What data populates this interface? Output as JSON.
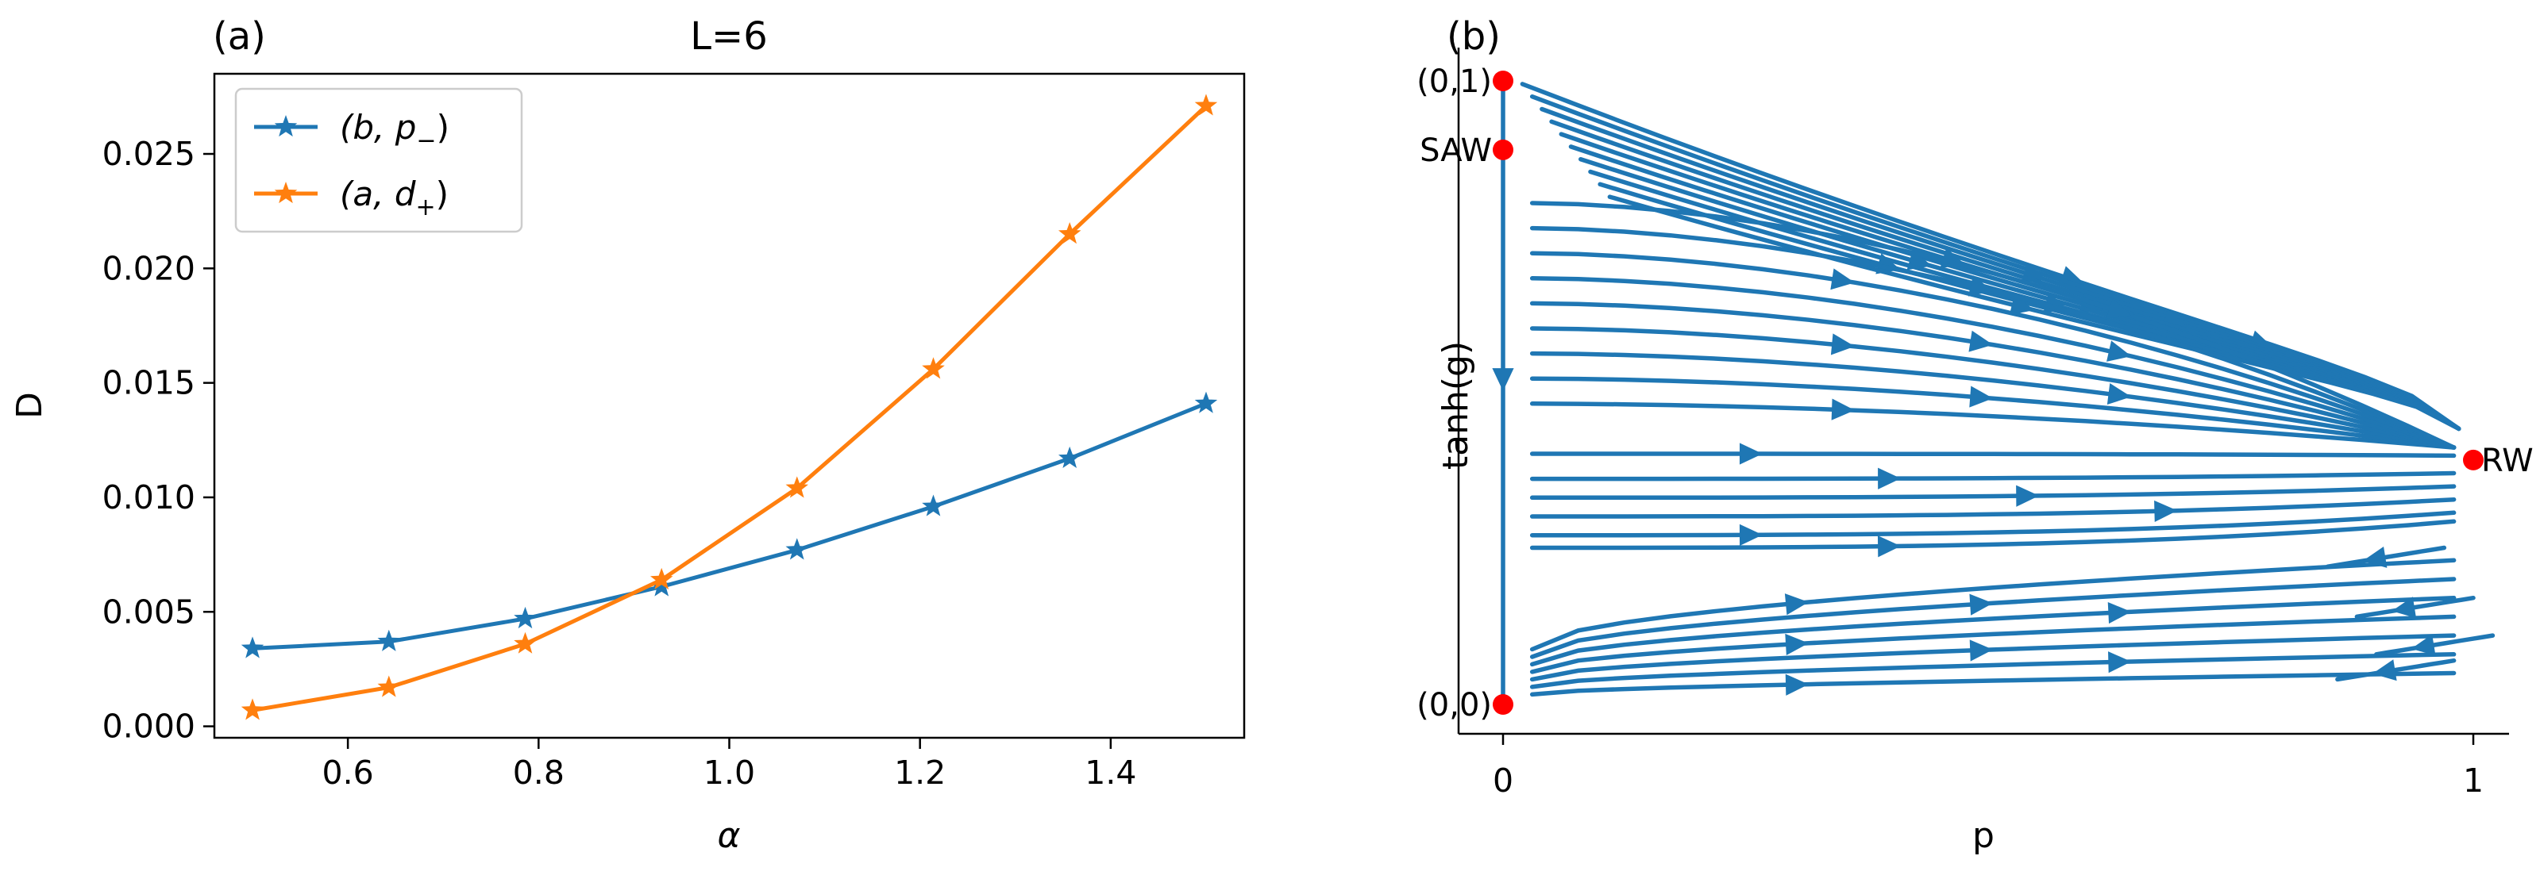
{
  "chart_data": [
    {
      "type": "line",
      "panel_label": "(a)",
      "title": "L=6",
      "xlabel": "α",
      "ylabel": "D",
      "xlim": [
        0.46,
        1.54
      ],
      "ylim": [
        -0.0005,
        0.0285
      ],
      "xticks": [
        0.6,
        0.8,
        1.0,
        1.2,
        1.4
      ],
      "xtick_labels": [
        "0.6",
        "0.8",
        "1.0",
        "1.2",
        "1.4"
      ],
      "yticks": [
        0.0,
        0.005,
        0.01,
        0.015,
        0.02,
        0.025
      ],
      "ytick_labels": [
        "0.000",
        "0.005",
        "0.010",
        "0.015",
        "0.020",
        "0.025"
      ],
      "legend_position": "top-left",
      "series": [
        {
          "name": "(b, p₋)",
          "legend_main": "(b, p",
          "legend_sub": "−",
          "legend_close": ")",
          "color": "#1f77b4",
          "marker": "star",
          "x": [
            0.5,
            0.643,
            0.786,
            0.929,
            1.071,
            1.214,
            1.357,
            1.5
          ],
          "values": [
            0.0034,
            0.0037,
            0.0047,
            0.0061,
            0.0077,
            0.0096,
            0.0117,
            0.0141
          ]
        },
        {
          "name": "(a, d₊)",
          "legend_main": "(a, d",
          "legend_sub": "+",
          "legend_close": ")",
          "color": "#ff7f0e",
          "marker": "star",
          "x": [
            0.5,
            0.643,
            0.786,
            0.929,
            1.071,
            1.214,
            1.357,
            1.5
          ],
          "values": [
            0.0007,
            0.0017,
            0.0036,
            0.0064,
            0.0104,
            0.0156,
            0.0215,
            0.0271
          ]
        }
      ]
    },
    {
      "type": "streamplot",
      "panel_label": "(b)",
      "xlabel": "p",
      "ylabel": "tanh(g)",
      "xlim": [
        -0.05,
        1.05
      ],
      "ylim": [
        -0.04,
        1.0
      ],
      "xticks": [
        0,
        1
      ],
      "xtick_labels": [
        "0",
        "1"
      ],
      "stream_color": "#1f77b4",
      "point_color": "#ff0000",
      "fixed_points": [
        {
          "label": "(0,1)",
          "x": 0,
          "y": 0.995
        },
        {
          "label": "SAW",
          "x": 0,
          "y": 0.885
        },
        {
          "label": "RW",
          "x": 1,
          "y": 0.39
        },
        {
          "label": "(0,0)",
          "x": 0,
          "y": 0.0
        }
      ]
    }
  ]
}
